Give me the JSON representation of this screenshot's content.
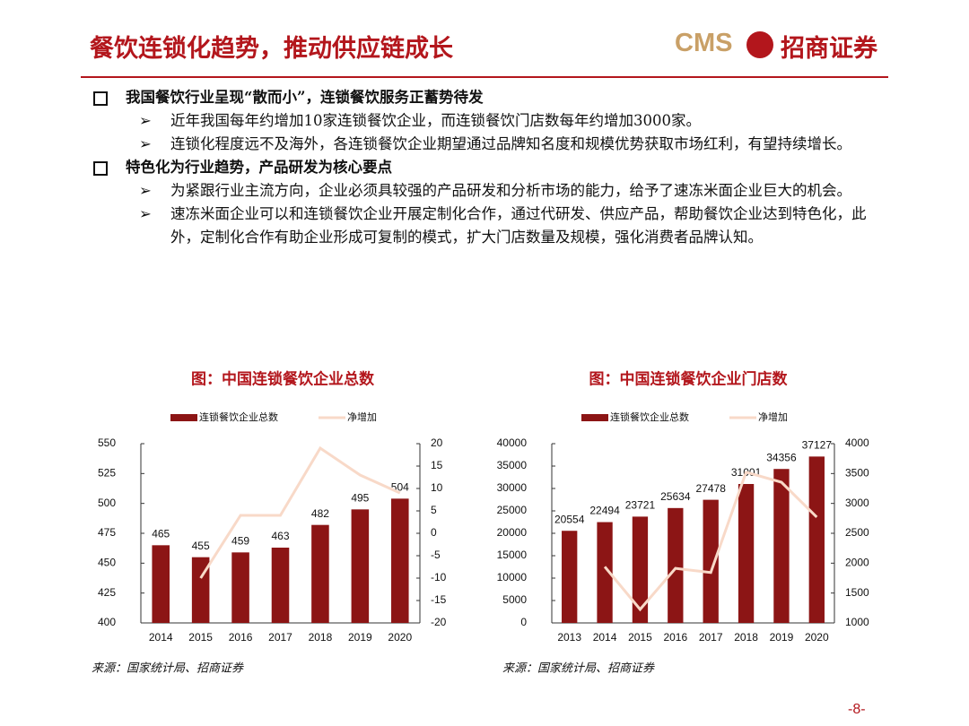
{
  "header": {
    "title": "餐饮连锁化趋势，推动供应链成长",
    "logo_en": "CMS",
    "logo_cn": "招商证券"
  },
  "sections": [
    {
      "heading": "我国餐饮行业呈现“散而小”，连锁餐饮服务正蓄势待发",
      "items": [
        "近年我国每年约增加10家连锁餐饮企业，而连锁餐饮门店数每年约增加3000家。",
        "连锁化程度远不及海外，各连锁餐饮企业期望通过品牌知名度和规模优势获取市场红利，有望持续增长。"
      ]
    },
    {
      "heading": "特色化为行业趋势，产品研发为核心要点",
      "items": [
        "为紧跟行业主流方向，企业必须具较强的产品研发和分析市场的能力，给予了速冻米面企业巨大的机会。",
        "速冻米面企业可以和连锁餐饮企业开展定制化合作，通过代研发、供应产品，帮助餐饮企业达到特色化，此外，定制化合作有助企业形成可复制的模式，扩大门店数量及规模，强化消费者品牌认知。"
      ]
    }
  ],
  "chart_data": [
    {
      "type": "bar",
      "title": "图：中国连锁餐饮企业总数",
      "categories": [
        "2014",
        "2015",
        "2016",
        "2017",
        "2018",
        "2019",
        "2020"
      ],
      "series": [
        {
          "name": "连锁餐饮企业总数",
          "color": "#8c1515",
          "values": [
            465,
            455,
            459,
            463,
            482,
            495,
            504
          ]
        },
        {
          "name": "净增加",
          "color": "#f8d9c8",
          "type": "line",
          "axis": "y2",
          "values": [
            null,
            -10,
            4,
            4,
            19,
            13,
            9
          ]
        }
      ],
      "ylim": [
        400,
        550
      ],
      "yticks": [
        400,
        425,
        450,
        475,
        500,
        525,
        550
      ],
      "y2lim": [
        -20,
        20
      ],
      "y2ticks": [
        -20,
        -15,
        -10,
        -5,
        0,
        5,
        10,
        15,
        20
      ],
      "source": "来源：国家统计局、招商证券"
    },
    {
      "type": "bar",
      "title": "图：中国连锁餐饮企业门店数",
      "categories": [
        "2013",
        "2014",
        "2015",
        "2016",
        "2017",
        "2018",
        "2019",
        "2020"
      ],
      "series": [
        {
          "name": "连锁餐饮企业总数",
          "color": "#8c1515",
          "values": [
            20554,
            22494,
            23721,
            25634,
            27478,
            31001,
            34356,
            37127
          ]
        },
        {
          "name": "净增加",
          "color": "#f8d9c8",
          "type": "line",
          "axis": "y2",
          "values": [
            null,
            1940,
            1227,
            1913,
            1844,
            3523,
            3355,
            2771
          ]
        }
      ],
      "ylim": [
        0,
        40000
      ],
      "yticks": [
        0,
        5000,
        10000,
        15000,
        20000,
        25000,
        30000,
        35000,
        40000
      ],
      "y2lim": [
        1000,
        4000
      ],
      "y2ticks": [
        1000,
        1500,
        2000,
        2500,
        3000,
        3500,
        4000
      ],
      "source": "来源：国家统计局、招商证券"
    }
  ],
  "page_number": "-8-"
}
